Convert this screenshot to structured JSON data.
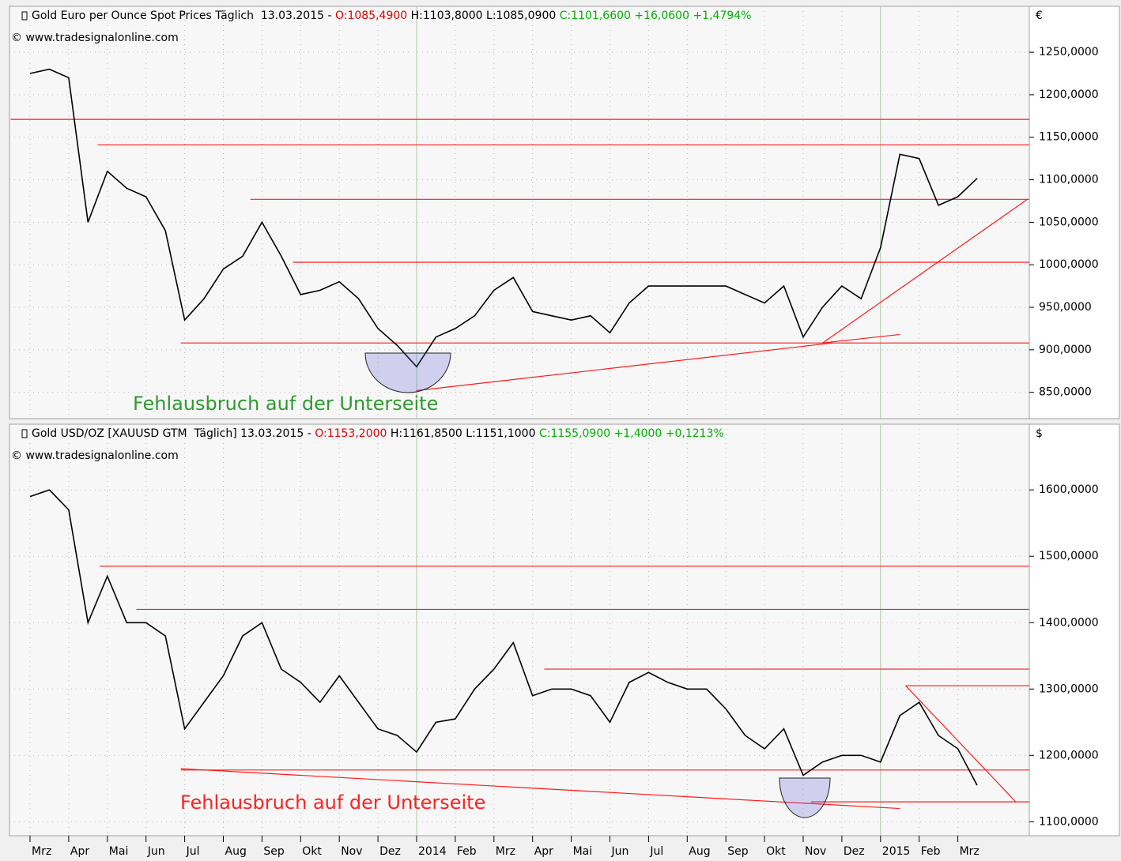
{
  "chart_data": [
    {
      "type": "line",
      "currency": "€",
      "header": [
        {
          "text": "Gold Euro per Ounce Spot Prices Täglich  13.03.2015 - ",
          "color": "#000000"
        },
        {
          "text": "O:1085,4900",
          "color": "#e00000"
        },
        {
          "text": " H:1103,8000 L:1085,0900 ",
          "color": "#000000"
        },
        {
          "text": "C:1101,6600 +16,0600 +1,4794%",
          "color": "#00b000"
        }
      ],
      "copyright": "© www.tradesignalonline.com",
      "annotation": {
        "text": "Fehlausbruch auf der Unterseite",
        "color": "#2e9a2e"
      },
      "color": "#000000",
      "values": [
        1225,
        1230,
        1220,
        1050,
        1110,
        1090,
        1080,
        1040,
        935,
        960,
        995,
        1010,
        1050,
        1010,
        965,
        970,
        980,
        960,
        925,
        905,
        880,
        915,
        925,
        940,
        970,
        985,
        945,
        940,
        935,
        940,
        920,
        955,
        975,
        975,
        975,
        975,
        975,
        965,
        955,
        975,
        915,
        950,
        975,
        960,
        1020,
        1130,
        1125,
        1070,
        1080,
        1101.66
      ],
      "levels": [
        {
          "value": 1171,
          "start": -1
        },
        {
          "value": 1141,
          "start": 3.5
        },
        {
          "value": 1077,
          "start": 11.4
        },
        {
          "value": 1003,
          "start": 13.6
        },
        {
          "value": 908,
          "start": 7.8
        }
      ],
      "trendlines": [
        [
          20,
          852,
          41.5,
          908
        ],
        [
          41,
          908,
          51.6,
          1077
        ],
        [
          41,
          908,
          45,
          918
        ]
      ],
      "ylim": [
        819,
        1304
      ],
      "yticks": [
        {
          "value": 850,
          "label": "850,0000"
        },
        {
          "value": 900,
          "label": "900,0000"
        },
        {
          "value": 950,
          "label": "950,0000"
        },
        {
          "value": 1000,
          "label": "1000,0000"
        },
        {
          "value": 1050,
          "label": "1050,0000"
        },
        {
          "value": 1100,
          "label": "1100,0000"
        },
        {
          "value": 1150,
          "label": "1150,0000"
        },
        {
          "value": 1200,
          "label": "1200,0000"
        },
        {
          "value": 1250,
          "label": "1250,0000"
        }
      ],
      "grid": true
    },
    {
      "type": "line",
      "currency": "$",
      "header": [
        {
          "text": "Gold USD/OZ [XAUUSD GTM  Täglich] 13.03.2015 - ",
          "color": "#000000"
        },
        {
          "text": "O:1153,2000",
          "color": "#e00000"
        },
        {
          "text": " H:1161,8500 L:1151,1000 ",
          "color": "#000000"
        },
        {
          "text": "C:1155,0900 +1,4000 +0,1213%",
          "color": "#00b000"
        }
      ],
      "copyright": "© www.tradesignalonline.com",
      "annotation": {
        "text": "Fehlausbruch auf der Unterseite",
        "color": "#ff2020"
      },
      "color": "#000000",
      "categories": [
        "Mrz",
        null,
        "Apr",
        null,
        "Mai",
        null,
        "Jun",
        null,
        "Jul",
        null,
        "Aug",
        null,
        "Sep",
        null,
        "Okt",
        null,
        "Nov",
        null,
        "Dez",
        null,
        "2014",
        null,
        "Feb",
        null,
        "Mrz",
        null,
        "Apr",
        null,
        "Mai",
        null,
        "Jun",
        null,
        "Jul",
        null,
        "Aug",
        null,
        "Sep",
        null,
        "Okt",
        null,
        "Nov",
        null,
        "Dez",
        null,
        "2015",
        null,
        "Feb",
        null,
        "Mrz",
        null
      ],
      "values": [
        1590,
        1600,
        1570,
        1400,
        1470,
        1400,
        1400,
        1380,
        1240,
        1280,
        1320,
        1380,
        1400,
        1330,
        1310,
        1280,
        1320,
        1280,
        1240,
        1230,
        1205,
        1250,
        1255,
        1300,
        1330,
        1370,
        1290,
        1300,
        1300,
        1290,
        1250,
        1310,
        1325,
        1310,
        1300,
        1300,
        1270,
        1230,
        1210,
        1240,
        1170,
        1190,
        1200,
        1200,
        1190,
        1260,
        1280,
        1230,
        1210,
        1155.09
      ],
      "levels": [
        {
          "value": 1485,
          "start": 3.6
        },
        {
          "value": 1420,
          "start": 5.5
        },
        {
          "value": 1330,
          "start": 26.6
        },
        {
          "value": 1305,
          "start": 45.3
        },
        {
          "value": 1178,
          "start": 7.8
        },
        {
          "value": 1130,
          "start": 40.4
        }
      ],
      "trendlines": [
        [
          7.8,
          1180,
          45,
          1120
        ],
        [
          45.3,
          1305,
          51,
          1130
        ]
      ],
      "ylim": [
        1079,
        1699
      ],
      "yticks": [
        {
          "value": 1100,
          "label": "1100,0000"
        },
        {
          "value": 1200,
          "label": "1200,0000"
        },
        {
          "value": 1300,
          "label": "1300,0000"
        },
        {
          "value": 1400,
          "label": "1400,0000"
        },
        {
          "value": 1500,
          "label": "1500,0000"
        },
        {
          "value": 1600,
          "label": "1600,0000"
        }
      ],
      "grid": true
    }
  ]
}
